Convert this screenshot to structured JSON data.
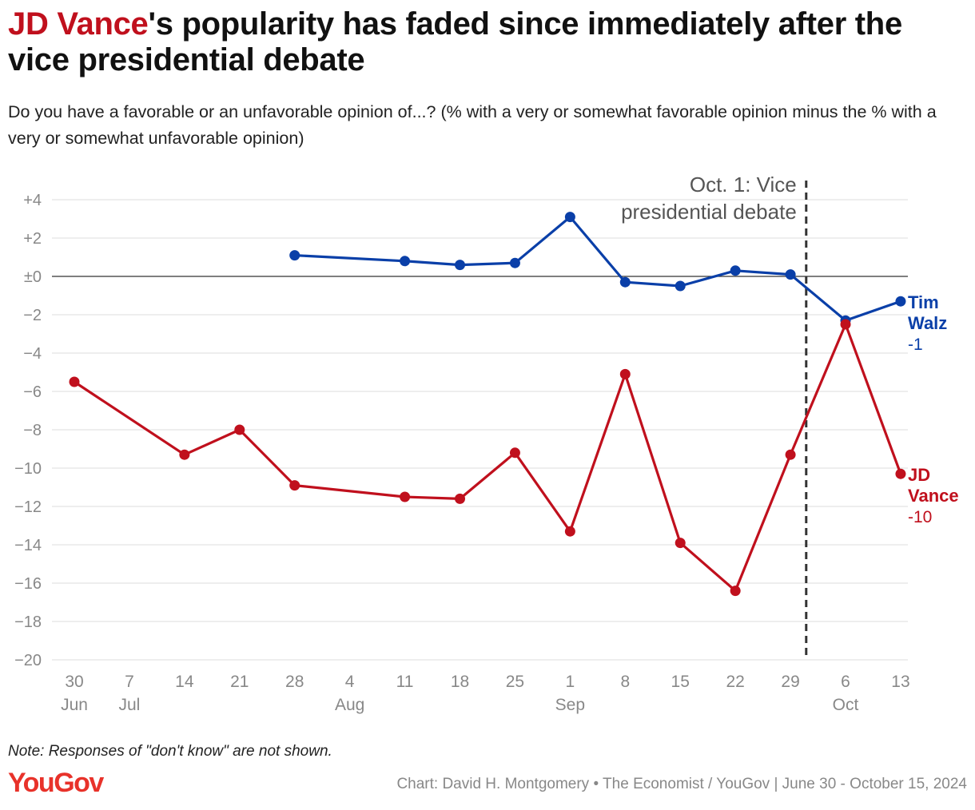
{
  "header": {
    "title_highlight": "JD Vance",
    "title_rest": "'s popularity has faded since immediately after the vice presidential debate",
    "subtitle": "Do you have a favorable or an unfavorable opinion of...? (% with a very or somewhat favorable opinion minus the % with a very or somewhat unfavorable opinion)"
  },
  "footer": {
    "note": "Note: Responses of \"don't know\" are not shown.",
    "logo": "YouGov",
    "credit": "Chart: David H. Montgomery • The Economist / YouGov | June 30 - October 15, 2024"
  },
  "colors": {
    "walz": "#0a3fa8",
    "vance": "#c0101d",
    "grid": "#dddddd",
    "zero_line": "#333333",
    "axis_text": "#888888"
  },
  "chart_data": {
    "type": "line",
    "x": [
      "2024-06-30",
      "2024-07-07",
      "2024-07-14",
      "2024-07-21",
      "2024-07-28",
      "2024-08-04",
      "2024-08-11",
      "2024-08-18",
      "2024-08-25",
      "2024-09-01",
      "2024-09-08",
      "2024-09-15",
      "2024-09-22",
      "2024-09-29",
      "2024-10-06",
      "2024-10-13"
    ],
    "x_tick_labels": [
      "30",
      "7",
      "14",
      "21",
      "28",
      "4",
      "11",
      "18",
      "25",
      "1",
      "8",
      "15",
      "22",
      "29",
      "6",
      "13"
    ],
    "x_month_labels": [
      {
        "index": 0,
        "label": "Jun"
      },
      {
        "index": 1,
        "label": "Jul"
      },
      {
        "index": 5,
        "label": "Aug"
      },
      {
        "index": 9,
        "label": "Sep"
      },
      {
        "index": 14,
        "label": "Oct"
      }
    ],
    "ylim": [
      -20,
      4
    ],
    "y_ticks": [
      4,
      2,
      0,
      -2,
      -4,
      -6,
      -8,
      -10,
      -12,
      -14,
      -16,
      -18,
      -20
    ],
    "y_tick_labels": [
      "+4",
      "+2",
      "±0",
      "−2",
      "−4",
      "−6",
      "−8",
      "−10",
      "−12",
      "−14",
      "−16",
      "−18",
      "−20"
    ],
    "grid": true,
    "legend": "end-of-line labels",
    "series": [
      {
        "name": "Tim Walz",
        "label_lines": [
          "Tim",
          "Walz"
        ],
        "end_value_label": "-1",
        "color": "#0a3fa8",
        "values": [
          null,
          null,
          null,
          null,
          1.1,
          null,
          0.8,
          0.6,
          0.7,
          3.1,
          -0.3,
          -0.5,
          0.3,
          0.1,
          -2.3,
          -1.3
        ]
      },
      {
        "name": "JD Vance",
        "label_lines": [
          "JD",
          "Vance"
        ],
        "end_value_label": "-10",
        "color": "#c0101d",
        "values": [
          -5.5,
          null,
          -9.3,
          -8.0,
          -10.9,
          null,
          -11.5,
          -11.6,
          -9.2,
          -13.3,
          -5.1,
          -13.9,
          -16.4,
          -9.3,
          -2.5,
          -10.3
        ]
      }
    ],
    "annotations": [
      {
        "type": "vertical_dashed_line",
        "x": "2024-10-01",
        "label_lines": [
          "Oct. 1: Vice",
          "presidential debate"
        ]
      }
    ]
  }
}
